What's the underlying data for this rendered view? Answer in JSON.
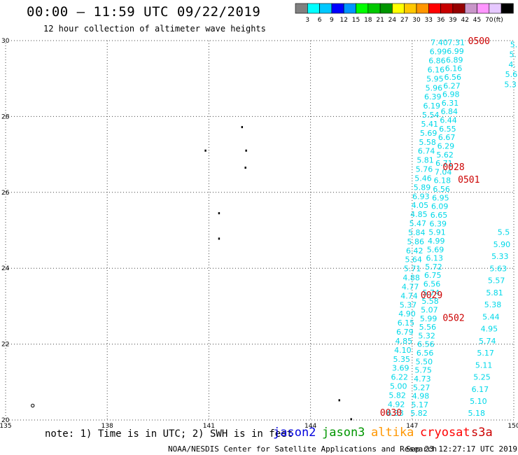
{
  "title": "00:00 – 11:59 UTC 09/22/2019",
  "subtitle": "12 hour collection of altimeter wave heights",
  "legend": {
    "unit": "(ft)",
    "colors": [
      "#808080",
      "#00ffff",
      "#00c8ff",
      "#0000ff",
      "#0096ff",
      "#00ff00",
      "#00c800",
      "#009600",
      "#ffff00",
      "#ffc800",
      "#ff9600",
      "#ff0000",
      "#c80000",
      "#960000",
      "#c896c8",
      "#ff96ff",
      "#e6c8ff",
      "#000000"
    ],
    "labels": [
      "3",
      "6",
      "9",
      "12",
      "15",
      "18",
      "21",
      "24",
      "27",
      "30",
      "33",
      "36",
      "39",
      "42",
      "45",
      "70"
    ]
  },
  "axes": {
    "lon_ticks": [
      "135",
      "138",
      "141",
      "144",
      "147",
      "150"
    ],
    "lat_ticks": [
      "20",
      "22",
      "24",
      "26",
      "28",
      "30"
    ]
  },
  "chart_data": {
    "type": "scatter",
    "x_range": [
      135,
      150
    ],
    "y_range": [
      20,
      30
    ],
    "swh_color": "#00d8e8",
    "pass_color": "#cc0000",
    "tracks": [
      {
        "lon_start": 146.5,
        "lon_end": 147.8,
        "lat_start": 20.18,
        "lat_end": 29.95,
        "values": [
          "6.33",
          "4.92",
          "5.82",
          "5.00",
          "6.22",
          "3.69",
          "5.35",
          "4.10",
          "4.85",
          "6.79",
          "6.15",
          "4.90",
          "5.37",
          "4.74",
          "4.77",
          "4.88",
          "5.71",
          "5.64",
          "6.42",
          "5.86",
          "5.84",
          "5.47",
          "4.85",
          "4.05",
          "6.93",
          "5.89",
          "5.46",
          "5.76",
          "5.81",
          "6.74",
          "5.58",
          "5.69",
          "5.41",
          "5.54",
          "6.19",
          "6.39",
          "5.96",
          "5.95",
          "6.16",
          "6.86",
          "6.99",
          "7.40"
        ]
      },
      {
        "lon_start": 147.2,
        "lon_end": 148.3,
        "lat_start": 20.18,
        "lat_end": 29.95,
        "values": [
          "5.82",
          "5.17",
          "4.98",
          "5.27",
          "4.73",
          "5.75",
          "5.50",
          "6.56",
          "6.56",
          "5.32",
          "5.56",
          "5.99",
          "5.07",
          "5.58",
          "5.74",
          "6.56",
          "6.75",
          "5.72",
          "6.13",
          "5.69",
          "4.99",
          "5.91",
          "6.39",
          "6.65",
          "6.09",
          "6.95",
          "6.56",
          "6.18",
          "7.04",
          "6.71",
          "5.62",
          "6.29",
          "6.67",
          "6.55",
          "6.44",
          "6.84",
          "6.31",
          "6.98",
          "6.27",
          "6.56",
          "6.16",
          "6.89",
          "6.99",
          "7.31"
        ]
      },
      {
        "lon_start": 148.9,
        "lon_end": 149.7,
        "lat_start": 20.18,
        "lat_end": 24.95,
        "values": [
          "5.18",
          "5.10",
          "6.17",
          "5.25",
          "5.11",
          "5.17",
          "5.74",
          "4.95",
          "5.44",
          "5.38",
          "5.81",
          "5.57",
          "5.63",
          "5.33",
          "5.90",
          "5.5"
        ]
      },
      {
        "lon_start": 149.9,
        "lon_end": 150.0,
        "lat_start": 28.85,
        "lat_end": 29.9,
        "values": [
          "5.3",
          "5.6",
          "4.",
          "5.",
          "5."
        ]
      }
    ],
    "pass_labels": [
      {
        "text": "0500",
        "lon": 148.65,
        "lat": 30.0
      },
      {
        "text": "0028",
        "lon": 147.9,
        "lat": 26.68
      },
      {
        "text": "0501",
        "lon": 148.35,
        "lat": 26.35
      },
      {
        "text": "0029",
        "lon": 147.25,
        "lat": 23.3
      },
      {
        "text": "0502",
        "lon": 147.9,
        "lat": 22.7
      },
      {
        "text": "0030",
        "lon": 146.05,
        "lat": 20.2
      }
    ],
    "islands": [
      {
        "lon": 140.9,
        "lat": 27.1
      },
      {
        "lon": 141.98,
        "lat": 27.72
      },
      {
        "lon": 142.1,
        "lat": 27.1
      },
      {
        "lon": 142.08,
        "lat": 26.65
      },
      {
        "lon": 141.3,
        "lat": 25.45
      },
      {
        "lon": 141.3,
        "lat": 24.78
      },
      {
        "lon": 144.85,
        "lat": 20.52
      },
      {
        "lon": 145.2,
        "lat": 20.02
      },
      {
        "lon": 135.8,
        "lat": 20.38,
        "ring": true
      }
    ]
  },
  "footer": {
    "note": "note: 1) Time is in UTC; 2) SWH is in feet",
    "satellites": [
      {
        "name": "jason2",
        "color": "#0000dd"
      },
      {
        "name": "jason3",
        "color": "#009600"
      },
      {
        "name": "altika",
        "color": "#ff9600"
      },
      {
        "name": "cryosat",
        "color": "#ff0000"
      },
      {
        "name": "s3a",
        "color": "#cc0000"
      }
    ],
    "credit": "NOAA/NESDIS Center for Satellite Applications and Research",
    "timestamp": "Sep 23 12:27:17 UTC 2019"
  }
}
